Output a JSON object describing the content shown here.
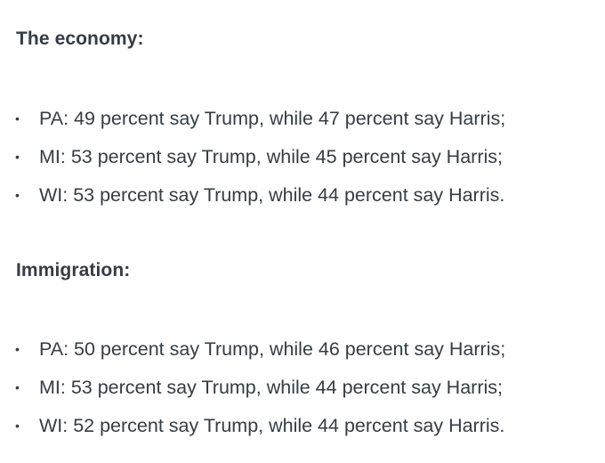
{
  "economy": {
    "heading": "The economy:",
    "items": [
      "PA: 49 percent say Trump, while 47 percent say Harris;",
      "MI: 53 percent say Trump, while 45 percent say Harris;",
      "WI: 53 percent say Trump, while 44 percent say Harris."
    ]
  },
  "immigration": {
    "heading": "Immigration:",
    "items": [
      "PA: 50 percent say Trump, while 46 percent say Harris;",
      "MI: 53 percent say Trump, while 44 percent say Harris;",
      "WI: 52 percent say Trump, while 44 percent say Harris."
    ]
  },
  "bullet_glyph": "•"
}
